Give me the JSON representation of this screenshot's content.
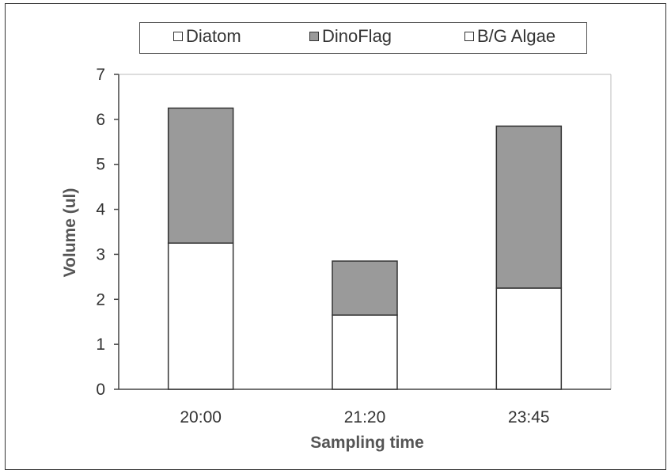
{
  "chart_data": {
    "type": "bar",
    "stacked": true,
    "categories": [
      "20:00",
      "21:20",
      "23:45"
    ],
    "series": [
      {
        "name": "Diatom",
        "values": [
          3.25,
          1.65,
          2.25
        ],
        "color": "#ffffff"
      },
      {
        "name": "DinoFlag",
        "values": [
          3.0,
          1.2,
          3.6
        ],
        "color": "#9a9a9a"
      },
      {
        "name": "B/G Algae",
        "values": [
          0,
          0,
          0
        ],
        "color": "#ffffff"
      }
    ],
    "xlabel": "Sampling time",
    "ylabel": "Volume (ul)",
    "ylim": [
      0,
      7
    ],
    "yticks": [
      "0",
      "1",
      "2",
      "3",
      "4",
      "5",
      "6",
      "7"
    ],
    "legend_position": "top",
    "grid": false
  }
}
